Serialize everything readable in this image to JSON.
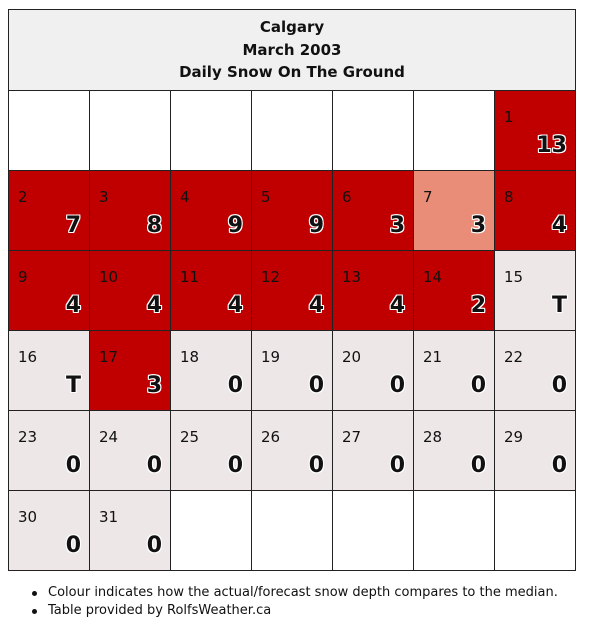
{
  "header": {
    "city": "Calgary",
    "month": "March 2003",
    "subtitle": "Daily Snow On The Ground"
  },
  "weeks": [
    [
      {
        "day": "",
        "value": "",
        "level": "empty"
      },
      {
        "day": "",
        "value": "",
        "level": "empty"
      },
      {
        "day": "",
        "value": "",
        "level": "empty"
      },
      {
        "day": "",
        "value": "",
        "level": "empty"
      },
      {
        "day": "",
        "value": "",
        "level": "empty"
      },
      {
        "day": "",
        "value": "",
        "level": "empty"
      },
      {
        "day": "1",
        "value": "13",
        "level": "red"
      }
    ],
    [
      {
        "day": "2",
        "value": "7",
        "level": "red"
      },
      {
        "day": "3",
        "value": "8",
        "level": "red"
      },
      {
        "day": "4",
        "value": "9",
        "level": "red"
      },
      {
        "day": "5",
        "value": "9",
        "level": "red"
      },
      {
        "day": "6",
        "value": "3",
        "level": "red"
      },
      {
        "day": "7",
        "value": "3",
        "level": "pink"
      },
      {
        "day": "8",
        "value": "4",
        "level": "red"
      }
    ],
    [
      {
        "day": "9",
        "value": "4",
        "level": "red"
      },
      {
        "day": "10",
        "value": "4",
        "level": "red"
      },
      {
        "day": "11",
        "value": "4",
        "level": "red"
      },
      {
        "day": "12",
        "value": "4",
        "level": "red"
      },
      {
        "day": "13",
        "value": "4",
        "level": "red"
      },
      {
        "day": "14",
        "value": "2",
        "level": "red"
      },
      {
        "day": "15",
        "value": "T",
        "level": "light"
      }
    ],
    [
      {
        "day": "16",
        "value": "T",
        "level": "light"
      },
      {
        "day": "17",
        "value": "3",
        "level": "red"
      },
      {
        "day": "18",
        "value": "0",
        "level": "light"
      },
      {
        "day": "19",
        "value": "0",
        "level": "light"
      },
      {
        "day": "20",
        "value": "0",
        "level": "light"
      },
      {
        "day": "21",
        "value": "0",
        "level": "light"
      },
      {
        "day": "22",
        "value": "0",
        "level": "light"
      }
    ],
    [
      {
        "day": "23",
        "value": "0",
        "level": "light"
      },
      {
        "day": "24",
        "value": "0",
        "level": "light"
      },
      {
        "day": "25",
        "value": "0",
        "level": "light"
      },
      {
        "day": "26",
        "value": "0",
        "level": "light"
      },
      {
        "day": "27",
        "value": "0",
        "level": "light"
      },
      {
        "day": "28",
        "value": "0",
        "level": "light"
      },
      {
        "day": "29",
        "value": "0",
        "level": "light"
      }
    ],
    [
      {
        "day": "30",
        "value": "0",
        "level": "light"
      },
      {
        "day": "31",
        "value": "0",
        "level": "light"
      },
      {
        "day": "",
        "value": "",
        "level": "empty"
      },
      {
        "day": "",
        "value": "",
        "level": "empty"
      },
      {
        "day": "",
        "value": "",
        "level": "empty"
      },
      {
        "day": "",
        "value": "",
        "level": "empty"
      },
      {
        "day": "",
        "value": "",
        "level": "empty"
      }
    ]
  ],
  "colors": {
    "above_median": "#c00000",
    "near_median": "#e98c78",
    "below_median": "#ede7e8",
    "empty": "#ffffff"
  },
  "notes": [
    "Colour indicates how the actual/forecast snow depth compares to the median.",
    "Table provided by RolfsWeather.ca"
  ]
}
